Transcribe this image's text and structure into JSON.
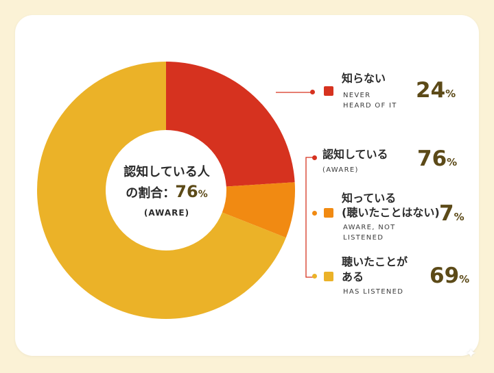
{
  "chart_data": {
    "type": "pie",
    "donut": true,
    "categories": [
      "知らない",
      "知っている（聴いたことはない）",
      "聴いたことがある"
    ],
    "values": [
      24,
      7,
      69
    ],
    "colors": [
      "#d6321f",
      "#f18a12",
      "#ebb228"
    ],
    "start_angle_deg": 0
  },
  "center": {
    "line1": "認知している人",
    "line2_prefix": "の割合：",
    "value": "76",
    "unit": "%",
    "sub": "(AWARE)"
  },
  "legend": {
    "never": {
      "jp": "知らない",
      "en1": "NEVER",
      "en2": "HEARD OF IT",
      "value": "24",
      "unit": "%",
      "color": "#d6321f"
    },
    "aware": {
      "jp": "認知している",
      "en": "(AWARE)",
      "value": "76",
      "unit": "%"
    },
    "not_listened": {
      "jp1": "知っている",
      "jp2": "(聴いたことはない)",
      "en1": "AWARE, NOT",
      "en2": "LISTENED",
      "value": "7",
      "unit": "%",
      "color": "#f18a12"
    },
    "listened": {
      "jp1": "聴いたことが",
      "jp2": "ある",
      "en": "HAS LISTENED",
      "value": "69",
      "unit": "%",
      "color": "#ebb228"
    }
  },
  "connector_color": "#d6321f"
}
